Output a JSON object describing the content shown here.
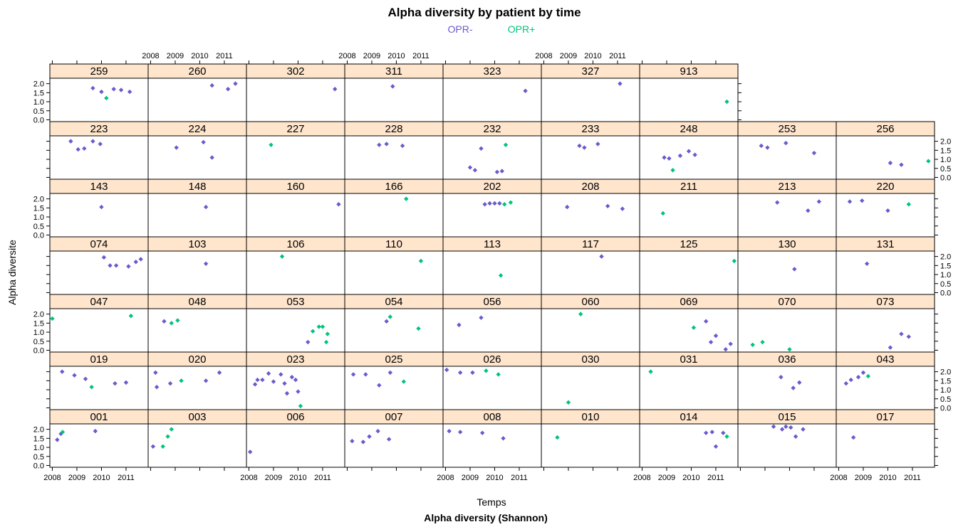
{
  "chart_data": {
    "type": "scatter",
    "title": "Alpha diversity by patient by time",
    "subtitle": "Alpha diversity (Shannon)",
    "xlabel": "Temps",
    "ylabel": "Alpha diversite",
    "xlim": [
      2007.9,
      2011.9
    ],
    "ylim": [
      -0.1,
      2.3
    ],
    "x_ticks": [
      2008,
      2009,
      2010,
      2011
    ],
    "x_tick_labels": [
      "2008",
      "2009",
      "2010",
      "2011"
    ],
    "y_ticks": [
      0,
      0.5,
      1,
      1.5,
      2
    ],
    "y_tick_labels": [
      "0.0",
      "0.5",
      "1.0",
      "1.5",
      "2.0"
    ],
    "grid": false,
    "legend": {
      "placement": "top-center",
      "entries": [
        {
          "name": "OPR-",
          "color": "#6a5acd"
        },
        {
          "name": "OPR+",
          "color": "#00c47a"
        }
      ]
    },
    "strip_color": "#ffe5cc",
    "rows": [
      [
        "001",
        "003",
        "006",
        "007",
        "008",
        "010",
        "014",
        "015",
        "017"
      ],
      [
        "019",
        "020",
        "023",
        "025",
        "026",
        "030",
        "031",
        "036",
        "043"
      ],
      [
        "047",
        "048",
        "053",
        "054",
        "056",
        "060",
        "069",
        "070",
        "073"
      ],
      [
        "074",
        "103",
        "106",
        "110",
        "113",
        "117",
        "125",
        "130",
        "131"
      ],
      [
        "143",
        "148",
        "160",
        "166",
        "202",
        "208",
        "211",
        "213",
        "220"
      ],
      [
        "223",
        "224",
        "227",
        "228",
        "232",
        "233",
        "248",
        "253",
        "256"
      ],
      [
        "259",
        "260",
        "302",
        "311",
        "323",
        "327",
        "913"
      ]
    ],
    "panels": {
      "001": [
        [
          2008.2,
          1.42,
          "-"
        ],
        [
          2008.35,
          1.75,
          "-"
        ],
        [
          2008.42,
          1.85,
          "+"
        ],
        [
          2009.75,
          1.9,
          "-"
        ]
      ],
      "003": [
        [
          2008.1,
          1.05,
          "-"
        ],
        [
          2008.5,
          1.05,
          "+"
        ],
        [
          2008.7,
          1.6,
          "+"
        ],
        [
          2008.85,
          2.0,
          "+"
        ]
      ],
      "006": [
        [
          2008.05,
          0.75,
          "-"
        ]
      ],
      "007": [
        [
          2008.2,
          1.35,
          "-"
        ],
        [
          2008.65,
          1.3,
          "-"
        ],
        [
          2008.9,
          1.6,
          "-"
        ],
        [
          2009.25,
          1.9,
          "-"
        ],
        [
          2009.7,
          1.45,
          "-"
        ]
      ],
      "008": [
        [
          2008.15,
          1.9,
          "-"
        ],
        [
          2008.6,
          1.85,
          "-"
        ],
        [
          2009.5,
          1.8,
          "-"
        ],
        [
          2010.35,
          1.5,
          "-"
        ]
      ],
      "010": [
        [
          2008.55,
          1.55,
          "+"
        ]
      ],
      "014": [
        [
          2010.6,
          1.8,
          "-"
        ],
        [
          2010.85,
          1.85,
          "-"
        ],
        [
          2011.0,
          1.05,
          "-"
        ],
        [
          2011.3,
          1.8,
          "-"
        ],
        [
          2011.45,
          1.6,
          "+"
        ]
      ],
      "015": [
        [
          2009.35,
          2.15,
          "-"
        ],
        [
          2009.7,
          2.0,
          "-"
        ],
        [
          2009.85,
          2.15,
          "-"
        ],
        [
          2010.05,
          2.1,
          "-"
        ],
        [
          2010.25,
          1.6,
          "-"
        ],
        [
          2010.55,
          2.0,
          "-"
        ]
      ],
      "017": [
        [
          2008.6,
          1.55,
          "-"
        ]
      ],
      "019": [
        [
          2008.4,
          2.0,
          "-"
        ],
        [
          2008.9,
          1.8,
          "-"
        ],
        [
          2009.35,
          1.6,
          "-"
        ],
        [
          2009.6,
          1.15,
          "+"
        ],
        [
          2010.55,
          1.35,
          "-"
        ],
        [
          2011.0,
          1.4,
          "-"
        ]
      ],
      "020": [
        [
          2008.2,
          1.95,
          "-"
        ],
        [
          2008.25,
          1.15,
          "-"
        ],
        [
          2008.8,
          1.35,
          "-"
        ],
        [
          2009.25,
          1.5,
          "+"
        ],
        [
          2010.25,
          1.5,
          "-"
        ],
        [
          2010.8,
          1.95,
          "-"
        ]
      ],
      "023": [
        [
          2008.25,
          1.3,
          "-"
        ],
        [
          2008.35,
          1.55,
          "-"
        ],
        [
          2008.55,
          1.55,
          "-"
        ],
        [
          2008.8,
          1.9,
          "-"
        ],
        [
          2009.0,
          1.45,
          "-"
        ],
        [
          2009.3,
          1.85,
          "-"
        ],
        [
          2009.45,
          1.35,
          "-"
        ],
        [
          2009.55,
          0.8,
          "-"
        ],
        [
          2009.75,
          1.7,
          "-"
        ],
        [
          2009.9,
          1.55,
          "-"
        ],
        [
          2010.0,
          0.9,
          "-"
        ],
        [
          2010.1,
          0.1,
          "+"
        ]
      ],
      "025": [
        [
          2008.25,
          1.85,
          "-"
        ],
        [
          2008.75,
          1.85,
          "-"
        ],
        [
          2009.3,
          1.25,
          "-"
        ],
        [
          2009.75,
          1.95,
          "-"
        ],
        [
          2010.3,
          1.45,
          "+"
        ]
      ],
      "026": [
        [
          2008.05,
          2.1,
          "-"
        ],
        [
          2008.6,
          1.95,
          "-"
        ],
        [
          2009.1,
          1.95,
          "-"
        ],
        [
          2009.65,
          2.05,
          "+"
        ],
        [
          2010.15,
          1.85,
          "+"
        ]
      ],
      "030": [
        [
          2009.0,
          0.3,
          "+"
        ]
      ],
      "031": [
        [
          2008.35,
          2.0,
          "+"
        ]
      ],
      "036": [
        [
          2009.65,
          1.7,
          "-"
        ],
        [
          2010.15,
          1.1,
          "-"
        ],
        [
          2010.4,
          1.4,
          "-"
        ]
      ],
      "043": [
        [
          2008.3,
          1.35,
          "-"
        ],
        [
          2008.5,
          1.55,
          "-"
        ],
        [
          2008.8,
          1.7,
          "-"
        ],
        [
          2009.0,
          1.95,
          "-"
        ],
        [
          2009.2,
          1.75,
          "+"
        ]
      ],
      "047": [
        [
          2008.0,
          1.75,
          "+"
        ],
        [
          2011.2,
          1.9,
          "+"
        ]
      ],
      "048": [
        [
          2008.55,
          1.6,
          "-"
        ],
        [
          2008.85,
          1.5,
          "+"
        ],
        [
          2009.1,
          1.65,
          "+"
        ]
      ],
      "053": [
        [
          2010.4,
          0.45,
          "-"
        ],
        [
          2010.6,
          1.05,
          "+"
        ],
        [
          2010.85,
          1.3,
          "+"
        ],
        [
          2011.0,
          1.3,
          "+"
        ],
        [
          2011.2,
          0.9,
          "+"
        ],
        [
          2011.15,
          0.45,
          "+"
        ]
      ],
      "054": [
        [
          2009.6,
          1.6,
          "-"
        ],
        [
          2009.75,
          1.85,
          "+"
        ],
        [
          2010.9,
          1.2,
          "+"
        ]
      ],
      "056": [
        [
          2008.55,
          1.4,
          "-"
        ],
        [
          2009.45,
          1.8,
          "-"
        ]
      ],
      "060": [
        [
          2009.5,
          2.0,
          "+"
        ]
      ],
      "069": [
        [
          2010.1,
          1.25,
          "+"
        ],
        [
          2010.6,
          1.6,
          "-"
        ],
        [
          2010.8,
          0.45,
          "-"
        ],
        [
          2011.0,
          0.8,
          "-"
        ],
        [
          2011.4,
          0.05,
          "-"
        ],
        [
          2011.6,
          0.35,
          "-"
        ]
      ],
      "070": [
        [
          2008.5,
          0.3,
          "+"
        ],
        [
          2008.9,
          0.45,
          "+"
        ],
        [
          2010.0,
          0.05,
          "+"
        ]
      ],
      "073": [
        [
          2010.1,
          0.15,
          "-"
        ],
        [
          2010.55,
          0.9,
          "-"
        ],
        [
          2010.85,
          0.75,
          "-"
        ]
      ],
      "074": [
        [
          2010.1,
          1.95,
          "-"
        ],
        [
          2010.35,
          1.5,
          "-"
        ],
        [
          2010.6,
          1.5,
          "-"
        ],
        [
          2011.1,
          1.45,
          "-"
        ],
        [
          2011.4,
          1.7,
          "-"
        ],
        [
          2011.6,
          1.85,
          "-"
        ]
      ],
      "103": [
        [
          2010.25,
          1.6,
          "-"
        ]
      ],
      "106": [
        [
          2009.35,
          2.0,
          "+"
        ]
      ],
      "110": [
        [
          2011.0,
          1.75,
          "+"
        ]
      ],
      "113": [
        [
          2010.25,
          0.95,
          "+"
        ]
      ],
      "117": [
        [
          2010.35,
          2.0,
          "-"
        ]
      ],
      "125": [
        [
          2011.75,
          1.75,
          "+"
        ]
      ],
      "130": [
        [
          2010.2,
          1.3,
          "-"
        ]
      ],
      "131": [
        [
          2009.15,
          1.6,
          "-"
        ]
      ],
      "143": [
        [
          2010.0,
          1.55,
          "-"
        ]
      ],
      "148": [
        [
          2010.25,
          1.55,
          "-"
        ]
      ],
      "160": [
        [
          2011.65,
          1.7,
          "-"
        ]
      ],
      "166": [
        [
          2010.4,
          2.0,
          "+"
        ]
      ],
      "202": [
        [
          2009.6,
          1.7,
          "-"
        ],
        [
          2009.8,
          1.75,
          "-"
        ],
        [
          2010.0,
          1.75,
          "-"
        ],
        [
          2010.2,
          1.75,
          "-"
        ],
        [
          2010.4,
          1.7,
          "+"
        ],
        [
          2010.65,
          1.8,
          "+"
        ]
      ],
      "208": [
        [
          2008.95,
          1.55,
          "-"
        ],
        [
          2010.6,
          1.6,
          "-"
        ],
        [
          2011.2,
          1.45,
          "-"
        ]
      ],
      "211": [
        [
          2008.85,
          1.2,
          "+"
        ]
      ],
      "213": [
        [
          2009.5,
          1.8,
          "-"
        ],
        [
          2010.75,
          1.35,
          "-"
        ],
        [
          2011.2,
          1.85,
          "-"
        ]
      ],
      "220": [
        [
          2008.45,
          1.85,
          "-"
        ],
        [
          2008.95,
          1.9,
          "-"
        ],
        [
          2010.0,
          1.35,
          "-"
        ],
        [
          2010.85,
          1.7,
          "+"
        ]
      ],
      "223": [
        [
          2008.75,
          2.0,
          "-"
        ],
        [
          2009.05,
          1.55,
          "-"
        ],
        [
          2009.3,
          1.6,
          "-"
        ],
        [
          2009.65,
          2.0,
          "-"
        ],
        [
          2009.95,
          1.85,
          "-"
        ]
      ],
      "224": [
        [
          2009.05,
          1.65,
          "-"
        ],
        [
          2010.15,
          1.95,
          "-"
        ],
        [
          2010.5,
          1.1,
          "-"
        ]
      ],
      "227": [
        [
          2008.9,
          1.8,
          "+"
        ]
      ],
      "228": [
        [
          2009.3,
          1.8,
          "-"
        ],
        [
          2009.6,
          1.85,
          "-"
        ],
        [
          2010.25,
          1.75,
          "-"
        ]
      ],
      "232": [
        [
          2009.0,
          0.55,
          "-"
        ],
        [
          2009.2,
          0.4,
          "-"
        ],
        [
          2009.45,
          1.6,
          "-"
        ],
        [
          2010.1,
          0.3,
          "-"
        ],
        [
          2010.3,
          0.35,
          "-"
        ],
        [
          2010.45,
          1.8,
          "+"
        ]
      ],
      "233": [
        [
          2009.45,
          1.75,
          "-"
        ],
        [
          2009.65,
          1.65,
          "-"
        ],
        [
          2010.2,
          1.85,
          "-"
        ]
      ],
      "248": [
        [
          2008.9,
          1.1,
          "-"
        ],
        [
          2009.1,
          1.05,
          "-"
        ],
        [
          2009.25,
          0.4,
          "+"
        ],
        [
          2009.55,
          1.2,
          "-"
        ],
        [
          2009.9,
          1.45,
          "-"
        ],
        [
          2010.15,
          1.25,
          "-"
        ]
      ],
      "253": [
        [
          2008.85,
          1.75,
          "-"
        ],
        [
          2009.1,
          1.65,
          "-"
        ],
        [
          2009.85,
          1.9,
          "-"
        ],
        [
          2011.0,
          1.35,
          "-"
        ]
      ],
      "256": [
        [
          2010.1,
          0.8,
          "-"
        ],
        [
          2010.55,
          0.7,
          "-"
        ],
        [
          2011.65,
          0.9,
          "+"
        ]
      ],
      "259": [
        [
          2009.65,
          1.75,
          "-"
        ],
        [
          2010.0,
          1.55,
          "-"
        ],
        [
          2010.2,
          1.2,
          "+"
        ],
        [
          2010.5,
          1.7,
          "-"
        ],
        [
          2010.8,
          1.65,
          "-"
        ],
        [
          2011.15,
          1.55,
          "-"
        ]
      ],
      "260": [
        [
          2010.5,
          1.9,
          "-"
        ],
        [
          2011.15,
          1.7,
          "-"
        ],
        [
          2011.45,
          2.0,
          "-"
        ]
      ],
      "302": [
        [
          2011.5,
          1.7,
          "-"
        ]
      ],
      "311": [
        [
          2009.85,
          1.85,
          "-"
        ]
      ],
      "323": [
        [
          2011.25,
          1.6,
          "-"
        ]
      ],
      "327": [
        [
          2011.1,
          2.0,
          "-"
        ]
      ],
      "913": [
        [
          2011.45,
          1.0,
          "+"
        ]
      ]
    }
  }
}
